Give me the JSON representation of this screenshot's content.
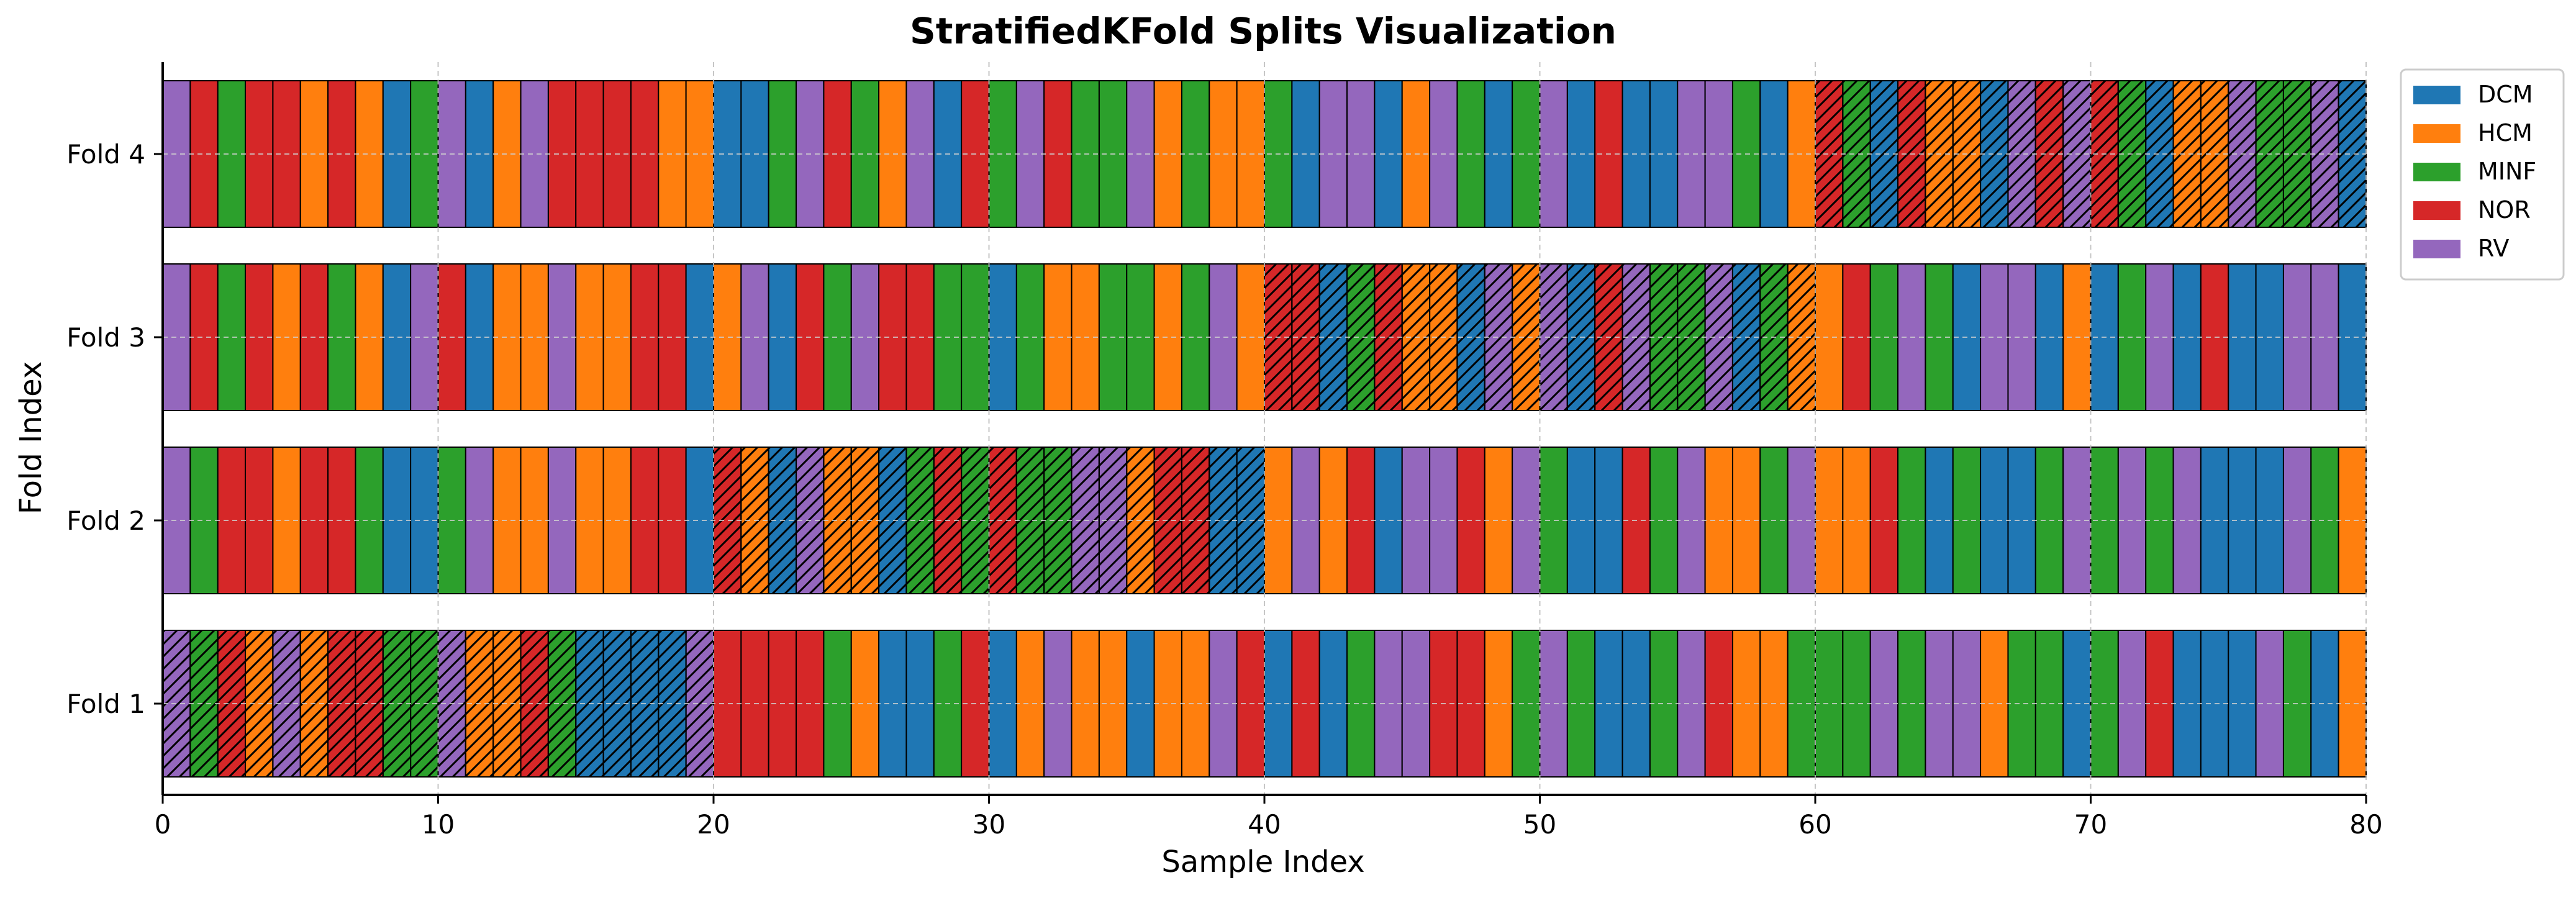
{
  "chart_data": {
    "type": "bar",
    "title": "StratifiedKFold Splits Visualization",
    "xlabel": "Sample Index",
    "ylabel": "Fold Index",
    "xlim": [
      0,
      80
    ],
    "x_ticks": [
      "0",
      "10",
      "20",
      "30",
      "40",
      "50",
      "60",
      "70",
      "80"
    ],
    "y_categories": [
      "Fold 1",
      "Fold 2",
      "Fold 3",
      "Fold 4"
    ],
    "grid": true,
    "legend_position": "top-right",
    "legend": [
      {
        "name": "DCM",
        "color": "#1f77b4"
      },
      {
        "name": "HCM",
        "color": "#ff7f0e"
      },
      {
        "name": "MINF",
        "color": "#2ca02c"
      },
      {
        "name": "NOR",
        "color": "#d62728"
      },
      {
        "name": "RV",
        "color": "#9467bd"
      }
    ],
    "hatch_meaning_visible": "hatched cells mark the test split of each fold",
    "folds": [
      {
        "name": "Fold 1",
        "test_range": [
          0,
          20
        ],
        "sample_classes": [
          "RV",
          "MINF",
          "NOR",
          "HCM",
          "RV",
          "HCM",
          "NOR",
          "NOR",
          "MINF",
          "MINF",
          "RV",
          "HCM",
          "HCM",
          "NOR",
          "MINF",
          "DCM",
          "DCM",
          "DCM",
          "DCM",
          "RV",
          "NOR",
          "NOR",
          "NOR",
          "NOR",
          "MINF",
          "HCM",
          "DCM",
          "DCM",
          "MINF",
          "NOR",
          "DCM",
          "HCM",
          "RV",
          "HCM",
          "HCM",
          "DCM",
          "HCM",
          "HCM",
          "RV",
          "NOR",
          "DCM",
          "NOR",
          "DCM",
          "MINF",
          "RV",
          "RV",
          "NOR",
          "NOR",
          "HCM",
          "MINF",
          "RV",
          "MINF",
          "DCM",
          "DCM",
          "MINF",
          "RV",
          "NOR",
          "HCM",
          "HCM",
          "MINF",
          "MINF",
          "MINF",
          "RV",
          "MINF",
          "RV",
          "RV",
          "HCM",
          "MINF",
          "MINF",
          "DCM",
          "MINF",
          "RV",
          "NOR",
          "DCM",
          "DCM",
          "DCM",
          "RV",
          "MINF",
          "DCM",
          "HCM"
        ]
      },
      {
        "name": "Fold 2",
        "test_range": [
          20,
          40
        ],
        "sample_classes": [
          "RV",
          "MINF",
          "NOR",
          "NOR",
          "HCM",
          "NOR",
          "NOR",
          "MINF",
          "DCM",
          "DCM",
          "MINF",
          "RV",
          "HCM",
          "HCM",
          "RV",
          "HCM",
          "HCM",
          "NOR",
          "NOR",
          "DCM",
          "NOR",
          "HCM",
          "DCM",
          "RV",
          "HCM",
          "HCM",
          "DCM",
          "MINF",
          "NOR",
          "MINF",
          "NOR",
          "MINF",
          "MINF",
          "RV",
          "RV",
          "HCM",
          "NOR",
          "NOR",
          "DCM",
          "DCM",
          "HCM",
          "RV",
          "HCM",
          "NOR",
          "DCM",
          "RV",
          "RV",
          "NOR",
          "HCM",
          "RV",
          "MINF",
          "DCM",
          "DCM",
          "NOR",
          "MINF",
          "RV",
          "HCM",
          "HCM",
          "MINF",
          "RV",
          "HCM",
          "HCM",
          "NOR",
          "MINF",
          "DCM",
          "MINF",
          "DCM",
          "DCM",
          "MINF",
          "RV",
          "MINF",
          "RV",
          "MINF",
          "RV",
          "DCM",
          "DCM",
          "DCM",
          "RV",
          "MINF",
          "HCM"
        ]
      },
      {
        "name": "Fold 3",
        "test_range": [
          40,
          60
        ],
        "sample_classes": [
          "RV",
          "NOR",
          "MINF",
          "NOR",
          "HCM",
          "NOR",
          "MINF",
          "HCM",
          "DCM",
          "RV",
          "NOR",
          "DCM",
          "HCM",
          "HCM",
          "RV",
          "HCM",
          "HCM",
          "NOR",
          "NOR",
          "DCM",
          "HCM",
          "RV",
          "DCM",
          "NOR",
          "MINF",
          "RV",
          "NOR",
          "NOR",
          "MINF",
          "MINF",
          "DCM",
          "MINF",
          "HCM",
          "HCM",
          "MINF",
          "MINF",
          "HCM",
          "MINF",
          "RV",
          "HCM",
          "NOR",
          "NOR",
          "DCM",
          "MINF",
          "NOR",
          "HCM",
          "HCM",
          "DCM",
          "RV",
          "HCM",
          "RV",
          "DCM",
          "NOR",
          "RV",
          "MINF",
          "MINF",
          "RV",
          "DCM",
          "MINF",
          "HCM",
          "HCM",
          "NOR",
          "MINF",
          "RV",
          "MINF",
          "DCM",
          "RV",
          "RV",
          "DCM",
          "HCM",
          "DCM",
          "MINF",
          "RV",
          "DCM",
          "NOR",
          "DCM",
          "DCM",
          "RV",
          "RV",
          "DCM"
        ]
      },
      {
        "name": "Fold 4",
        "test_range": [
          60,
          80
        ],
        "sample_classes": [
          "RV",
          "NOR",
          "MINF",
          "NOR",
          "NOR",
          "HCM",
          "NOR",
          "HCM",
          "DCM",
          "MINF",
          "RV",
          "DCM",
          "HCM",
          "RV",
          "NOR",
          "NOR",
          "NOR",
          "NOR",
          "HCM",
          "HCM",
          "DCM",
          "DCM",
          "MINF",
          "RV",
          "NOR",
          "MINF",
          "HCM",
          "RV",
          "DCM",
          "NOR",
          "MINF",
          "RV",
          "NOR",
          "MINF",
          "MINF",
          "RV",
          "HCM",
          "MINF",
          "HCM",
          "HCM",
          "MINF",
          "DCM",
          "RV",
          "RV",
          "DCM",
          "HCM",
          "RV",
          "MINF",
          "DCM",
          "MINF",
          "RV",
          "DCM",
          "NOR",
          "DCM",
          "DCM",
          "RV",
          "RV",
          "MINF",
          "DCM",
          "HCM",
          "NOR",
          "MINF",
          "DCM",
          "NOR",
          "HCM",
          "HCM",
          "DCM",
          "RV",
          "NOR",
          "RV",
          "NOR",
          "MINF",
          "DCM",
          "HCM",
          "HCM",
          "RV",
          "MINF",
          "MINF",
          "RV",
          "DCM"
        ]
      }
    ]
  }
}
